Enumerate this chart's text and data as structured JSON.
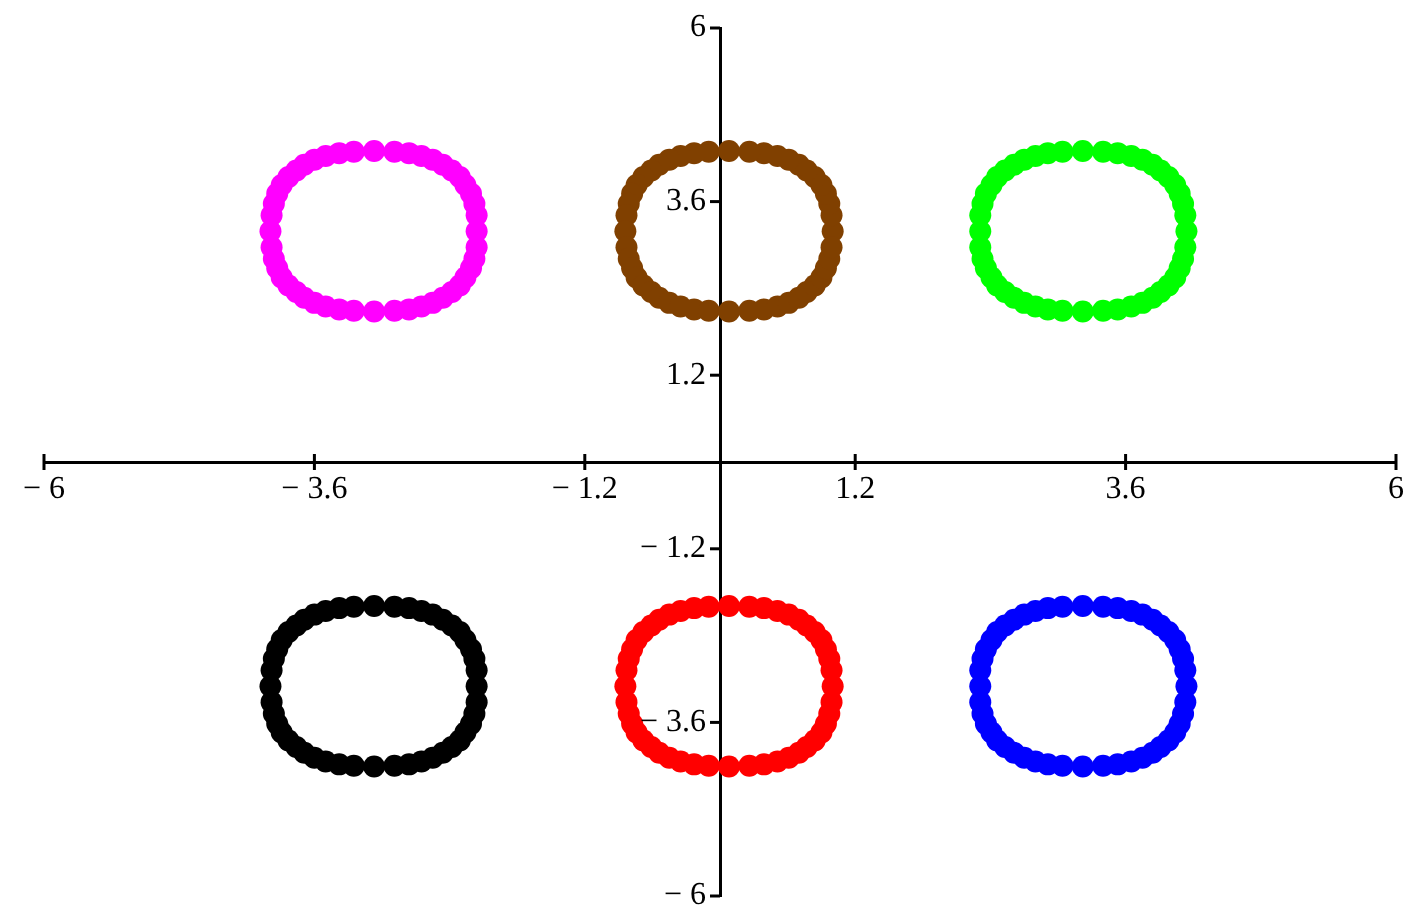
{
  "chart_data": {
    "type": "scatter",
    "marker": "circle",
    "xlim": [
      -6,
      6
    ],
    "ylim": [
      -6,
      6
    ],
    "xticks": [
      {
        "value": -6,
        "label": "− 6"
      },
      {
        "value": -3.6,
        "label": "− 3.6"
      },
      {
        "value": -1.2,
        "label": "− 1.2"
      },
      1.2,
      3.6,
      6
    ],
    "yticks": [
      {
        "value": -6,
        "label": "− 6"
      },
      {
        "value": -3.6,
        "label": "− 3.6"
      },
      {
        "value": -1.2,
        "label": "− 1.2"
      },
      1.2,
      3.6,
      6
    ],
    "series": [
      {
        "color": "#ff00ff",
        "x": [
          -2.16,
          -2.16,
          -2.18,
          -2.21,
          -2.26,
          -2.31,
          -2.38,
          -2.46,
          -2.55,
          -2.65,
          -2.76,
          -2.89,
          -3.07,
          -3.25,
          -3.38,
          -3.5,
          -3.6,
          -3.69,
          -3.76,
          -3.83,
          -3.89,
          -3.93,
          -3.96,
          -3.98,
          -3.99,
          -3.98,
          -3.96,
          -3.93,
          -3.89,
          -3.83,
          -3.76,
          -3.69,
          -3.6,
          -3.5,
          -3.38,
          -3.25,
          -3.07,
          -2.89,
          -2.76,
          -2.65,
          -2.55,
          -2.46,
          -2.38,
          -2.31,
          -2.26,
          -2.21,
          -2.18,
          -2.16
        ],
        "values": [
          3.19,
          3.41,
          3.57,
          3.71,
          3.83,
          3.94,
          4.03,
          4.11,
          4.18,
          4.23,
          4.27,
          4.29,
          4.3,
          4.29,
          4.27,
          4.23,
          4.18,
          4.11,
          4.03,
          3.94,
          3.83,
          3.71,
          3.57,
          3.41,
          3.19,
          2.97,
          2.81,
          2.68,
          2.55,
          2.44,
          2.35,
          2.27,
          2.2,
          2.15,
          2.11,
          2.09,
          2.08,
          2.09,
          2.11,
          2.15,
          2.2,
          2.27,
          2.35,
          2.44,
          2.55,
          2.68,
          2.81,
          2.97
        ]
      },
      {
        "color": "#804000",
        "x": [
          1.0,
          0.99,
          0.97,
          0.94,
          0.9,
          0.84,
          0.77,
          0.7,
          0.61,
          0.51,
          0.39,
          0.26,
          0.08,
          -0.1,
          -0.23,
          -0.35,
          -0.45,
          -0.54,
          -0.61,
          -0.68,
          -0.74,
          -0.78,
          -0.81,
          -0.83,
          -0.84,
          -0.83,
          -0.81,
          -0.78,
          -0.74,
          -0.68,
          -0.61,
          -0.54,
          -0.45,
          -0.35,
          -0.23,
          -0.1,
          0.08,
          0.26,
          0.39,
          0.51,
          0.61,
          0.7,
          0.77,
          0.84,
          0.9,
          0.94,
          0.97,
          0.99
        ],
        "values": [
          3.19,
          3.41,
          3.57,
          3.71,
          3.83,
          3.94,
          4.03,
          4.11,
          4.18,
          4.23,
          4.27,
          4.29,
          4.3,
          4.29,
          4.27,
          4.23,
          4.18,
          4.11,
          4.03,
          3.94,
          3.83,
          3.71,
          3.57,
          3.41,
          3.19,
          2.97,
          2.81,
          2.68,
          2.55,
          2.44,
          2.35,
          2.27,
          2.2,
          2.15,
          2.11,
          2.09,
          2.08,
          2.09,
          2.11,
          2.15,
          2.2,
          2.27,
          2.35,
          2.44,
          2.55,
          2.68,
          2.81,
          2.97
        ]
      },
      {
        "color": "#00ff00",
        "x": [
          4.14,
          4.13,
          4.11,
          4.08,
          4.04,
          3.98,
          3.91,
          3.84,
          3.75,
          3.65,
          3.53,
          3.4,
          3.22,
          3.04,
          2.91,
          2.8,
          2.7,
          2.61,
          2.53,
          2.46,
          2.41,
          2.36,
          2.33,
          2.31,
          2.31,
          2.31,
          2.33,
          2.36,
          2.41,
          2.46,
          2.53,
          2.61,
          2.7,
          2.8,
          2.91,
          3.04,
          3.22,
          3.4,
          3.53,
          3.65,
          3.75,
          3.84,
          3.91,
          3.98,
          4.04,
          4.08,
          4.11,
          4.13
        ],
        "values": [
          3.19,
          3.41,
          3.57,
          3.71,
          3.83,
          3.94,
          4.03,
          4.11,
          4.18,
          4.23,
          4.27,
          4.29,
          4.3,
          4.29,
          4.27,
          4.23,
          4.18,
          4.11,
          4.03,
          3.94,
          3.83,
          3.71,
          3.57,
          3.41,
          3.19,
          2.97,
          2.81,
          2.68,
          2.55,
          2.44,
          2.35,
          2.27,
          2.2,
          2.15,
          2.11,
          2.09,
          2.08,
          2.09,
          2.11,
          2.15,
          2.2,
          2.27,
          2.35,
          2.44,
          2.55,
          2.68,
          2.81,
          2.97
        ]
      },
      {
        "color": "#000000",
        "x": [
          -2.16,
          -2.16,
          -2.18,
          -2.21,
          -2.26,
          -2.31,
          -2.38,
          -2.46,
          -2.55,
          -2.65,
          -2.76,
          -2.89,
          -3.07,
          -3.25,
          -3.38,
          -3.5,
          -3.6,
          -3.69,
          -3.76,
          -3.83,
          -3.89,
          -3.93,
          -3.96,
          -3.98,
          -3.99,
          -3.98,
          -3.96,
          -3.93,
          -3.89,
          -3.83,
          -3.76,
          -3.69,
          -3.6,
          -3.5,
          -3.38,
          -3.25,
          -3.07,
          -2.89,
          -2.76,
          -2.65,
          -2.55,
          -2.46,
          -2.38,
          -2.31,
          -2.26,
          -2.21,
          -2.18,
          -2.16
        ],
        "values": [
          -3.1,
          -2.88,
          -2.72,
          -2.59,
          -2.46,
          -2.35,
          -2.26,
          -2.18,
          -2.11,
          -2.06,
          -2.02,
          -2.0,
          -1.99,
          -2.0,
          -2.02,
          -2.06,
          -2.11,
          -2.18,
          -2.26,
          -2.35,
          -2.46,
          -2.59,
          -2.72,
          -2.88,
          -3.1,
          -3.32,
          -3.48,
          -3.62,
          -3.74,
          -3.85,
          -3.94,
          -4.02,
          -4.09,
          -4.14,
          -4.18,
          -4.2,
          -4.21,
          -4.2,
          -4.18,
          -4.14,
          -4.09,
          -4.02,
          -3.94,
          -3.85,
          -3.74,
          -3.62,
          -3.48,
          -3.32
        ]
      },
      {
        "color": "#ff0000",
        "x": [
          1.0,
          0.99,
          0.97,
          0.94,
          0.9,
          0.84,
          0.77,
          0.7,
          0.61,
          0.51,
          0.39,
          0.26,
          0.08,
          -0.1,
          -0.23,
          -0.35,
          -0.45,
          -0.54,
          -0.61,
          -0.68,
          -0.74,
          -0.78,
          -0.81,
          -0.83,
          -0.84,
          -0.83,
          -0.81,
          -0.78,
          -0.74,
          -0.68,
          -0.61,
          -0.54,
          -0.45,
          -0.35,
          -0.23,
          -0.1,
          0.08,
          0.26,
          0.39,
          0.51,
          0.61,
          0.7,
          0.77,
          0.84,
          0.9,
          0.94,
          0.97,
          0.99
        ],
        "values": [
          -3.1,
          -2.88,
          -2.72,
          -2.59,
          -2.46,
          -2.35,
          -2.26,
          -2.18,
          -2.11,
          -2.06,
          -2.02,
          -2.0,
          -1.99,
          -2.0,
          -2.02,
          -2.06,
          -2.11,
          -2.18,
          -2.26,
          -2.35,
          -2.46,
          -2.59,
          -2.72,
          -2.88,
          -3.1,
          -3.32,
          -3.48,
          -3.62,
          -3.74,
          -3.85,
          -3.94,
          -4.02,
          -4.09,
          -4.14,
          -4.18,
          -4.2,
          -4.21,
          -4.2,
          -4.18,
          -4.14,
          -4.09,
          -4.02,
          -3.94,
          -3.85,
          -3.74,
          -3.62,
          -3.48,
          -3.32
        ]
      },
      {
        "color": "#0000ff",
        "x": [
          4.14,
          4.13,
          4.11,
          4.08,
          4.04,
          3.98,
          3.91,
          3.84,
          3.75,
          3.65,
          3.53,
          3.4,
          3.22,
          3.04,
          2.91,
          2.8,
          2.7,
          2.61,
          2.53,
          2.46,
          2.41,
          2.36,
          2.33,
          2.31,
          2.31,
          2.31,
          2.33,
          2.36,
          2.41,
          2.46,
          2.53,
          2.61,
          2.7,
          2.8,
          2.91,
          3.04,
          3.22,
          3.4,
          3.53,
          3.65,
          3.75,
          3.84,
          3.91,
          3.98,
          4.04,
          4.08,
          4.11,
          4.13
        ],
        "values": [
          -3.1,
          -2.88,
          -2.72,
          -2.59,
          -2.46,
          -2.35,
          -2.26,
          -2.18,
          -2.11,
          -2.06,
          -2.02,
          -2.0,
          -1.99,
          -2.0,
          -2.02,
          -2.06,
          -2.11,
          -2.18,
          -2.26,
          -2.35,
          -2.46,
          -2.59,
          -2.72,
          -2.88,
          -3.1,
          -3.32,
          -3.48,
          -3.62,
          -3.74,
          -3.85,
          -3.94,
          -4.02,
          -4.09,
          -4.14,
          -4.18,
          -4.2,
          -4.21,
          -4.2,
          -4.18,
          -4.14,
          -4.09,
          -4.02,
          -3.94,
          -3.85,
          -3.74,
          -3.62,
          -3.48,
          -3.32
        ]
      }
    ]
  }
}
